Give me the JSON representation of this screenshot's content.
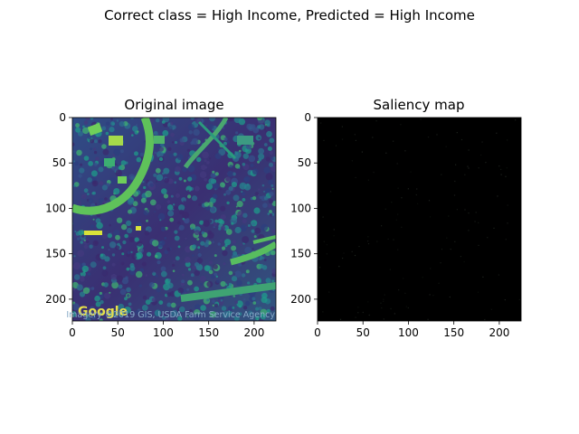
{
  "figure": {
    "suptitle": "Correct class = High Income, Predicted = High Income",
    "watermark": "Google",
    "attribution": "Imagery ©2019 GIS, USDA Farm Service Agency"
  },
  "chart_data": [
    {
      "type": "heatmap",
      "title": "Original image",
      "colormap": "viridis",
      "xlim": [
        0,
        224
      ],
      "ylim": [
        224,
        0
      ],
      "xticks": [
        0,
        50,
        100,
        150,
        200
      ],
      "yticks": [
        0,
        50,
        100,
        150,
        200
      ]
    },
    {
      "type": "heatmap",
      "title": "Saliency map",
      "colormap": "gray",
      "xlim": [
        0,
        224
      ],
      "ylim": [
        224,
        0
      ],
      "xticks": [
        0,
        50,
        100,
        150,
        200
      ],
      "yticks": [
        0,
        50,
        100,
        150,
        200
      ]
    }
  ],
  "colors": {
    "viridis_dark": "#3b2a6e",
    "viridis_mid": "#2c6f8e",
    "viridis_green": "#4fb46a",
    "viridis_yellow": "#d9e33a",
    "black": "#000000"
  }
}
